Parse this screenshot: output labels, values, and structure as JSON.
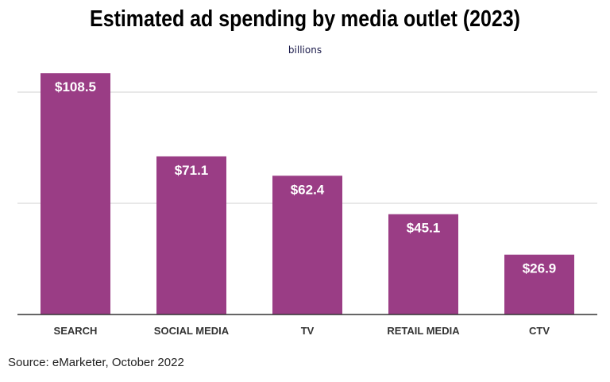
{
  "chart_data": {
    "type": "bar",
    "title": "Estimated ad spending by media outlet (2023)",
    "subtitle": "billions",
    "categories": [
      "SEARCH",
      "SOCIAL MEDIA",
      "TV",
      "RETAIL MEDIA",
      "CTV"
    ],
    "values": [
      108.5,
      71.1,
      62.4,
      45.1,
      26.9
    ],
    "data_labels": [
      "$108.5",
      "$71.1",
      "$62.4",
      "$45.1",
      "$26.9"
    ],
    "xlabel": "",
    "ylabel": "",
    "ylim": [
      0,
      110
    ],
    "gridlines": [
      50,
      100
    ],
    "grid": true,
    "bar_color": "#9a3d85",
    "label_color": "#ffffff"
  },
  "source": "Source: eMarketer, October 2022"
}
